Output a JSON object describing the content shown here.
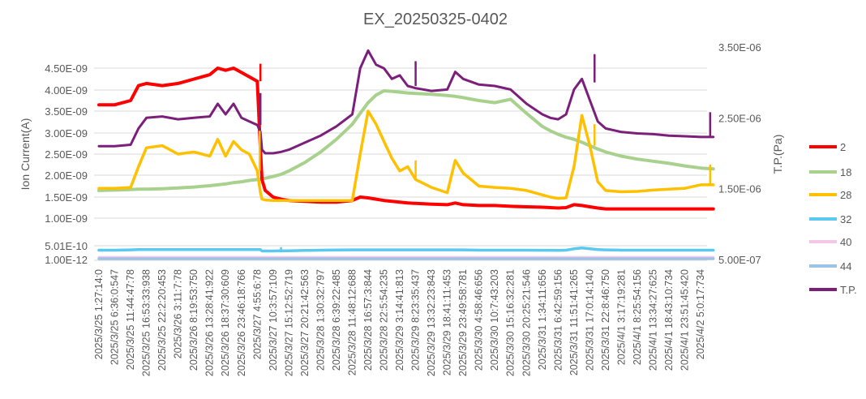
{
  "chart_data": {
    "type": "line",
    "title": "EX_20250325-0402",
    "ylabel": "Ion Current(A)",
    "y2label": "T.P.(Pa)",
    "y_ticks": [
      "1.00E-12",
      "5.01E-10",
      "1.00E-09",
      "1.50E-09",
      "2.00E-09",
      "2.50E-09",
      "3.00E-09",
      "3.50E-09",
      "4.00E-09",
      "4.50E-09"
    ],
    "y_tick_values": [
      1e-12,
      5.01e-10,
      1e-09,
      1.5e-09,
      2e-09,
      2.5e-09,
      3e-09,
      3.5e-09,
      4e-09,
      4.5e-09
    ],
    "ylim": [
      1e-12,
      4.9e-09
    ],
    "y2_ticks": [
      "5.00E-07",
      "1.50E-06",
      "2.50E-06",
      "3.50E-06"
    ],
    "y2_tick_values": [
      5e-07,
      1.5e-06,
      2.5e-06,
      3.5e-06
    ],
    "y2lim": [
      5e-07,
      3.5e-06
    ],
    "grid": true,
    "legend_position": "right",
    "x_tick_labels": [
      "2025/3/25  1:27:14:0",
      "2025/3/25  6:36:0:547",
      "2025/3/25  11:44:47:78",
      "2025/3/25  16:53:33:938",
      "2025/3/25  22:2:20:453",
      "2025/3/26  3:11:7:78",
      "2025/3/26  8:19:53:750",
      "2025/3/26  13:28:41:922",
      "2025/3/26  18:37:30:609",
      "2025/3/26  23:46:18:766",
      "2025/3/27  4:55:6:78",
      "2025/3/27  10:3:57:109",
      "2025/3/27  15:12:52:719",
      "2025/3/27  20:21:42:563",
      "2025/3/28  1:30:32:797",
      "2025/3/28  6:39:22:485",
      "2025/3/28  11:48:12:688",
      "2025/3/28  16:57:3:844",
      "2025/3/28  22:5:54:235",
      "2025/3/29  3:14:41:813",
      "2025/3/29  8:23:35:437",
      "2025/3/29  13:32:23:843",
      "2025/3/29  18:41:11:453",
      "2025/3/29  23:49:58:781",
      "2025/3/30  4:58:46:656",
      "2025/3/30  10:7:43:203",
      "2025/3/30  15:16:32:281",
      "2025/3/30  20:25:21:546",
      "2025/3/31  1:34:11:656",
      "2025/3/31  6:42:59:156",
      "2025/3/31  11:51:41:265",
      "2025/3/31  17:0:14:140",
      "2025/3/31  22:8:46:750",
      "2025/4/1  3:17:19:281",
      "2025/4/1  8:25:54:156",
      "2025/4/1  13:34:27:625",
      "2025/4/1  18:43:10:734",
      "2025/4/1  23:51:45:420",
      "2025/4/2  5:0:17:734"
    ],
    "x": [
      0,
      1,
      2,
      2.5,
      3,
      4,
      5,
      6,
      7,
      7.5,
      8,
      8.5,
      9,
      9.5,
      10,
      10.2,
      10.3,
      10.5,
      11,
      11.5,
      12,
      13,
      14,
      15,
      16,
      16.5,
      17,
      17.5,
      18,
      18.5,
      19,
      19.5,
      20,
      21,
      22,
      22.5,
      23,
      24,
      25,
      26,
      27,
      28,
      28.5,
      29,
      29.5,
      30,
      30.5,
      31,
      31.5,
      32,
      33,
      34,
      35,
      36,
      37,
      38,
      38.8
    ],
    "series": [
      {
        "name": "2",
        "axis": "primary",
        "color": "#ff0000",
        "values": [
          3.65e-09,
          3.65e-09,
          3.75e-09,
          4.1e-09,
          4.15e-09,
          4.1e-09,
          4.15e-09,
          4.25e-09,
          4.35e-09,
          4.5e-09,
          4.45e-09,
          4.5e-09,
          4.4e-09,
          4.3e-09,
          4.2e-09,
          2.6e-09,
          1.9e-09,
          1.65e-09,
          1.5e-09,
          1.45e-09,
          1.42e-09,
          1.4e-09,
          1.38e-09,
          1.38e-09,
          1.42e-09,
          1.5e-09,
          1.48e-09,
          1.45e-09,
          1.42e-09,
          1.4e-09,
          1.38e-09,
          1.36e-09,
          1.35e-09,
          1.33e-09,
          1.32e-09,
          1.36e-09,
          1.32e-09,
          1.3e-09,
          1.3e-09,
          1.28e-09,
          1.27e-09,
          1.26e-09,
          1.25e-09,
          1.24e-09,
          1.25e-09,
          1.32e-09,
          1.3e-09,
          1.27e-09,
          1.24e-09,
          1.22e-09,
          1.22e-09,
          1.22e-09,
          1.22e-09,
          1.22e-09,
          1.22e-09,
          1.22e-09,
          1.22e-09
        ]
      },
      {
        "name": "18",
        "axis": "primary",
        "color": "#a9d18e",
        "values": [
          1.65e-09,
          1.66e-09,
          1.67e-09,
          1.68e-09,
          1.68e-09,
          1.69e-09,
          1.71e-09,
          1.73e-09,
          1.76e-09,
          1.78e-09,
          1.8e-09,
          1.83e-09,
          1.85e-09,
          1.88e-09,
          1.9e-09,
          1.91e-09,
          1.92e-09,
          1.93e-09,
          1.97e-09,
          2.02e-09,
          2.1e-09,
          2.3e-09,
          2.55e-09,
          2.85e-09,
          3.2e-09,
          3.45e-09,
          3.7e-09,
          3.88e-09,
          3.98e-09,
          3.97e-09,
          3.95e-09,
          3.93e-09,
          3.92e-09,
          3.9e-09,
          3.87e-09,
          3.85e-09,
          3.82e-09,
          3.75e-09,
          3.7e-09,
          3.78e-09,
          3.45e-09,
          3.15e-09,
          3.05e-09,
          2.97e-09,
          2.9e-09,
          2.85e-09,
          2.78e-09,
          2.7e-09,
          2.62e-09,
          2.55e-09,
          2.45e-09,
          2.38e-09,
          2.33e-09,
          2.28e-09,
          2.22e-09,
          2.17e-09,
          2.15e-09
        ]
      },
      {
        "name": "28",
        "axis": "primary",
        "color": "#ffc000",
        "values": [
          1.7e-09,
          1.7e-09,
          1.72e-09,
          2.2e-09,
          2.65e-09,
          2.7e-09,
          2.5e-09,
          2.55e-09,
          2.45e-09,
          2.85e-09,
          2.45e-09,
          2.8e-09,
          2.6e-09,
          2.5e-09,
          2.1e-09,
          1.6e-09,
          1.45e-09,
          1.43e-09,
          1.42e-09,
          1.42e-09,
          1.42e-09,
          1.42e-09,
          1.42e-09,
          1.42e-09,
          1.42e-09,
          2.5e-09,
          3.5e-09,
          3.2e-09,
          2.8e-09,
          2.4e-09,
          2.1e-09,
          2.2e-09,
          1.9e-09,
          1.72e-09,
          1.6e-09,
          2.35e-09,
          2.05e-09,
          1.75e-09,
          1.72e-09,
          1.7e-09,
          1.65e-09,
          1.55e-09,
          1.5e-09,
          1.47e-09,
          1.48e-09,
          2.2e-09,
          3.4e-09,
          2.7e-09,
          1.85e-09,
          1.65e-09,
          1.62e-09,
          1.63e-09,
          1.66e-09,
          1.68e-09,
          1.7e-09,
          1.78e-09,
          1.78e-09
        ]
      },
      {
        "name": "32",
        "axis": "primary",
        "color": "#5bc8ef",
        "values": [
          3.4e-10,
          3.4e-10,
          3.5e-10,
          3.6e-10,
          3.6e-10,
          3.6e-10,
          3.6e-10,
          3.6e-10,
          3.6e-10,
          3.6e-10,
          3.6e-10,
          3.6e-10,
          3.6e-10,
          3.6e-10,
          3.6e-10,
          3.6e-10,
          3.1e-10,
          3.1e-10,
          3.1e-10,
          3.15e-10,
          3.2e-10,
          3.3e-10,
          3.4e-10,
          3.45e-10,
          3.5e-10,
          3.5e-10,
          3.5e-10,
          3.5e-10,
          3.5e-10,
          3.5e-10,
          3.5e-10,
          3.5e-10,
          3.5e-10,
          3.5e-10,
          3.5e-10,
          3.5e-10,
          3.5e-10,
          3.4e-10,
          3.4e-10,
          3.4e-10,
          3.4e-10,
          3.35e-10,
          3.35e-10,
          3.3e-10,
          3.4e-10,
          3.9e-10,
          4.2e-10,
          3.9e-10,
          3.6e-10,
          3.5e-10,
          3.4e-10,
          3.4e-10,
          3.4e-10,
          3.4e-10,
          3.4e-10,
          3.4e-10,
          3.4e-10
        ]
      },
      {
        "name": "40",
        "axis": "primary",
        "color": "#f4c6e8",
        "values": [
          8e-11,
          8e-11,
          8e-11,
          8e-11,
          8e-11,
          8e-11,
          8e-11,
          8e-11,
          8e-11,
          8e-11,
          8e-11,
          8e-11,
          8e-11,
          8e-11,
          8e-11,
          8e-11,
          8e-11,
          8e-11,
          8e-11,
          8e-11,
          8e-11,
          8e-11,
          8e-11,
          8e-11,
          8e-11,
          8e-11,
          8e-11,
          8e-11,
          8e-11,
          8e-11,
          8e-11,
          8e-11,
          8e-11,
          8e-11,
          8e-11,
          8e-11,
          8e-11,
          8e-11,
          8e-11,
          8e-11,
          8e-11,
          8e-11,
          8e-11,
          8e-11,
          8e-11,
          8e-11,
          8e-11,
          8e-11,
          8e-11,
          8e-11,
          8e-11,
          8e-11,
          8e-11,
          8e-11,
          8e-11,
          8e-11,
          8e-11
        ]
      },
      {
        "name": "44",
        "axis": "primary",
        "color": "#9dc3e6",
        "values": [
          3e-11,
          3e-11,
          3e-11,
          3e-11,
          3e-11,
          3e-11,
          3e-11,
          3e-11,
          3e-11,
          3e-11,
          3e-11,
          3e-11,
          3e-11,
          3e-11,
          3e-11,
          3e-11,
          3e-11,
          3e-11,
          3e-11,
          3e-11,
          3e-11,
          3e-11,
          3e-11,
          3e-11,
          3e-11,
          3e-11,
          3e-11,
          3e-11,
          3e-11,
          3e-11,
          3e-11,
          3e-11,
          3e-11,
          3e-11,
          3e-11,
          3e-11,
          3e-11,
          3e-11,
          3e-11,
          3e-11,
          3e-11,
          3e-11,
          3e-11,
          3e-11,
          3e-11,
          3e-11,
          3e-11,
          3e-11,
          3e-11,
          3e-11,
          3e-11,
          3e-11,
          3e-11,
          3e-11,
          3e-11,
          3e-11,
          3e-11
        ]
      },
      {
        "name": "T.P.",
        "axis": "secondary",
        "color": "#7b1f7b",
        "values": [
          2.1e-06,
          2.1e-06,
          2.12e-06,
          2.35e-06,
          2.5e-06,
          2.52e-06,
          2.48e-06,
          2.5e-06,
          2.52e-06,
          2.7e-06,
          2.55e-06,
          2.7e-06,
          2.5e-06,
          2.45e-06,
          2.4e-06,
          2.3e-06,
          2.05e-06,
          2e-06,
          2e-06,
          2.02e-06,
          2.05e-06,
          2.15e-06,
          2.25e-06,
          2.38e-06,
          2.55e-06,
          3.2e-06,
          3.45e-06,
          3.25e-06,
          3.2e-06,
          3.05e-06,
          3.1e-06,
          2.95e-06,
          2.92e-06,
          2.88e-06,
          2.9e-06,
          3.15e-06,
          3.05e-06,
          2.97e-06,
          2.95e-06,
          2.9e-06,
          2.7e-06,
          2.55e-06,
          2.5e-06,
          2.48e-06,
          2.55e-06,
          2.9e-06,
          3.05e-06,
          2.75e-06,
          2.45e-06,
          2.35e-06,
          2.3e-06,
          2.28e-06,
          2.27e-06,
          2.25e-06,
          2.24e-06,
          2.23e-06,
          2.23e-06
        ]
      }
    ],
    "spikes": [
      {
        "series": "2",
        "x": 10.2,
        "values": [
          4.2e-09,
          4.6e-09
        ]
      },
      {
        "series": "28",
        "x": 10.15,
        "values": [
          2.1e-09,
          3.05e-09
        ]
      },
      {
        "series": "T.P.",
        "x": 10.2,
        "values": [
          2.4e-06,
          2.85e-06
        ]
      },
      {
        "series": "T.P.",
        "x": 20,
        "values": [
          2.95e-06,
          3.3e-06
        ]
      },
      {
        "series": "28",
        "x": 20,
        "values": [
          1.9e-09,
          2.35e-09
        ]
      },
      {
        "series": "T.P.",
        "x": 31.3,
        "values": [
          3e-06,
          3.4e-06
        ]
      },
      {
        "series": "28",
        "x": 31.3,
        "values": [
          2.7e-09,
          3.2e-09
        ]
      },
      {
        "series": "T.P.",
        "x": 38.6,
        "values": [
          2.23e-06,
          2.58e-06
        ]
      },
      {
        "series": "28",
        "x": 38.6,
        "values": [
          1.78e-09,
          2.25e-09
        ]
      },
      {
        "series": "32",
        "x": 11.5,
        "values": [
          3.1e-10,
          4.5e-10
        ]
      }
    ]
  }
}
